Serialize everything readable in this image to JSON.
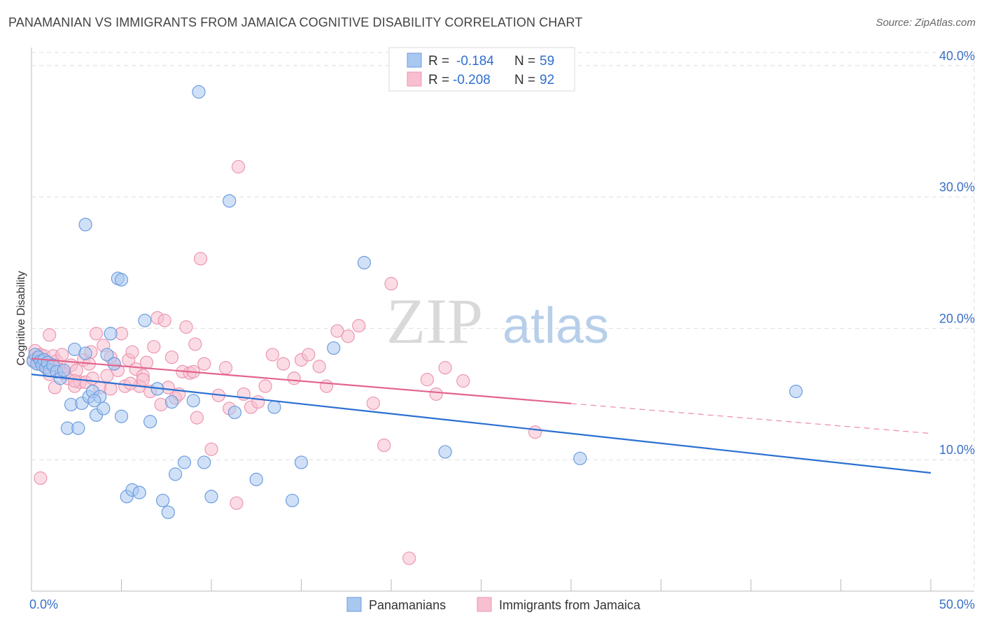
{
  "title": "PANAMANIAN VS IMMIGRANTS FROM JAMAICA COGNITIVE DISABILITY CORRELATION CHART",
  "source": "Source: ZipAtlas.com",
  "watermark": {
    "zip": "ZIP",
    "atlas": "atlas"
  },
  "colors": {
    "blue_fill": "#a9c8f0",
    "blue_stroke": "#6d9de0",
    "blue_line": "#2b70d2",
    "pink_fill": "#f7bfd0",
    "pink_stroke": "#ec97b2",
    "pink_line": "#e3648e",
    "grid": "#dddddd",
    "axis_text": "#3a6fc4"
  },
  "legend_top": {
    "rows": [
      {
        "r_label": "R =",
        "r_value": "-0.184",
        "n_label": "N =",
        "n_value": "59",
        "series": "blue"
      },
      {
        "r_label": "R =",
        "r_value": "-0.208",
        "n_label": "N =",
        "n_value": "92",
        "series": "pink"
      }
    ]
  },
  "legend_bottom": {
    "items": [
      {
        "label": "Panamanians",
        "series": "blue"
      },
      {
        "label": "Immigrants from Jamaica",
        "series": "pink"
      }
    ]
  },
  "chart_data": {
    "type": "scatter",
    "title": "PANAMANIAN VS IMMIGRANTS FROM JAMAICA COGNITIVE DISABILITY CORRELATION CHART",
    "xlabel": "",
    "ylabel": "Cognitive Disability",
    "xlim": [
      0,
      50
    ],
    "ylim": [
      0,
      41
    ],
    "x_tick_labels": [
      "0.0%",
      "50.0%"
    ],
    "y_ticks": [
      10,
      20,
      30,
      40
    ],
    "y_tick_labels": [
      "10.0%",
      "20.0%",
      "30.0%",
      "40.0%"
    ],
    "grid": true,
    "legend_position": "top-center",
    "series": [
      {
        "name": "Panamanians",
        "color": "#6d9de0",
        "r": -0.184,
        "n": 59,
        "trend": {
          "x": [
            0,
            50
          ],
          "y": [
            16.5,
            9.0
          ],
          "dashed_from": null
        },
        "x": [
          0.1,
          0.2,
          0.3,
          0.4,
          0.5,
          0.6,
          0.7,
          0.8,
          0.9,
          1.0,
          1.2,
          1.4,
          1.6,
          1.8,
          2.0,
          2.2,
          2.4,
          2.6,
          2.8,
          3.0,
          3.2,
          3.4,
          3.6,
          3.8,
          4.0,
          4.2,
          4.4,
          4.6,
          4.8,
          5.0,
          5.3,
          5.6,
          6.0,
          6.3,
          6.6,
          7.0,
          7.3,
          7.6,
          7.8,
          8.0,
          8.5,
          9.0,
          9.3,
          9.6,
          10.0,
          11.0,
          11.3,
          12.5,
          13.5,
          14.5,
          15.0,
          16.8,
          18.5,
          23.0,
          30.5,
          42.5,
          3.0,
          3.5,
          5.0
        ],
        "y": [
          17.5,
          18.0,
          17.3,
          17.8,
          17.5,
          17.2,
          17.6,
          17.0,
          17.4,
          16.8,
          17.2,
          16.7,
          16.2,
          16.8,
          12.4,
          14.2,
          18.4,
          12.4,
          14.3,
          18.1,
          14.8,
          15.2,
          13.4,
          14.8,
          13.9,
          18.0,
          19.6,
          17.3,
          23.8,
          13.3,
          7.2,
          7.7,
          7.5,
          20.6,
          12.9,
          15.4,
          6.9,
          6.0,
          14.4,
          8.9,
          9.8,
          14.5,
          38.0,
          9.8,
          7.2,
          29.7,
          13.6,
          8.5,
          14.0,
          6.9,
          9.8,
          18.5,
          25.0,
          10.6,
          10.1,
          15.2,
          27.9,
          14.5,
          23.7
        ],
        "values_note": "approximate"
      },
      {
        "name": "Immigrants from Jamaica",
        "color": "#ec97b2",
        "r": -0.208,
        "n": 92,
        "trend": {
          "x": [
            0,
            50
          ],
          "y": [
            17.7,
            12.0
          ],
          "dashed_from": 30
        },
        "x": [
          0.1,
          0.2,
          0.3,
          0.4,
          0.5,
          0.6,
          0.7,
          0.8,
          1.0,
          1.2,
          1.4,
          1.5,
          1.7,
          1.8,
          2.0,
          2.2,
          2.4,
          2.5,
          2.7,
          2.9,
          3.0,
          3.2,
          3.4,
          3.6,
          3.8,
          4.0,
          4.2,
          4.4,
          4.6,
          4.8,
          5.0,
          5.2,
          5.4,
          5.6,
          5.8,
          6.0,
          6.2,
          6.4,
          6.6,
          6.8,
          7.0,
          7.2,
          7.4,
          7.6,
          7.8,
          8.0,
          8.2,
          8.4,
          8.6,
          8.8,
          9.0,
          9.2,
          9.4,
          9.6,
          10.0,
          10.4,
          10.8,
          11.0,
          11.4,
          11.8,
          12.2,
          12.6,
          13.0,
          13.4,
          14.0,
          14.6,
          15.0,
          15.4,
          16.0,
          16.4,
          17.0,
          17.6,
          18.2,
          19.0,
          19.6,
          20.0,
          21.0,
          22.0,
          22.5,
          23.0,
          24.0,
          28.0,
          0.5,
          1.0,
          1.3,
          2.4,
          3.3,
          4.4,
          5.5,
          6.2,
          9.1,
          11.5
        ],
        "y": [
          17.6,
          18.3,
          17.8,
          17.3,
          18.0,
          17.5,
          17.9,
          17.1,
          19.5,
          17.9,
          17.5,
          16.9,
          18.0,
          16.6,
          16.2,
          17.2,
          15.6,
          16.8,
          15.9,
          17.6,
          15.9,
          17.3,
          16.2,
          19.6,
          15.5,
          18.7,
          16.4,
          15.4,
          17.3,
          16.8,
          19.6,
          15.6,
          17.6,
          18.2,
          16.9,
          15.6,
          16.4,
          17.4,
          15.2,
          18.6,
          20.8,
          14.2,
          20.6,
          15.5,
          17.8,
          14.7,
          15.0,
          16.7,
          20.1,
          16.6,
          16.7,
          13.2,
          25.3,
          17.3,
          10.8,
          14.9,
          17.0,
          13.9,
          6.7,
          15.0,
          14.0,
          14.4,
          15.6,
          18.0,
          17.3,
          16.2,
          17.6,
          18.0,
          17.1,
          15.6,
          19.8,
          19.4,
          20.2,
          14.3,
          11.1,
          23.4,
          2.5,
          16.1,
          15.0,
          17.0,
          16.0,
          12.1,
          8.6,
          16.5,
          15.5,
          16.0,
          18.2,
          17.8,
          15.8,
          16.1,
          18.8,
          32.3
        ],
        "values_note": "approximate"
      }
    ]
  }
}
